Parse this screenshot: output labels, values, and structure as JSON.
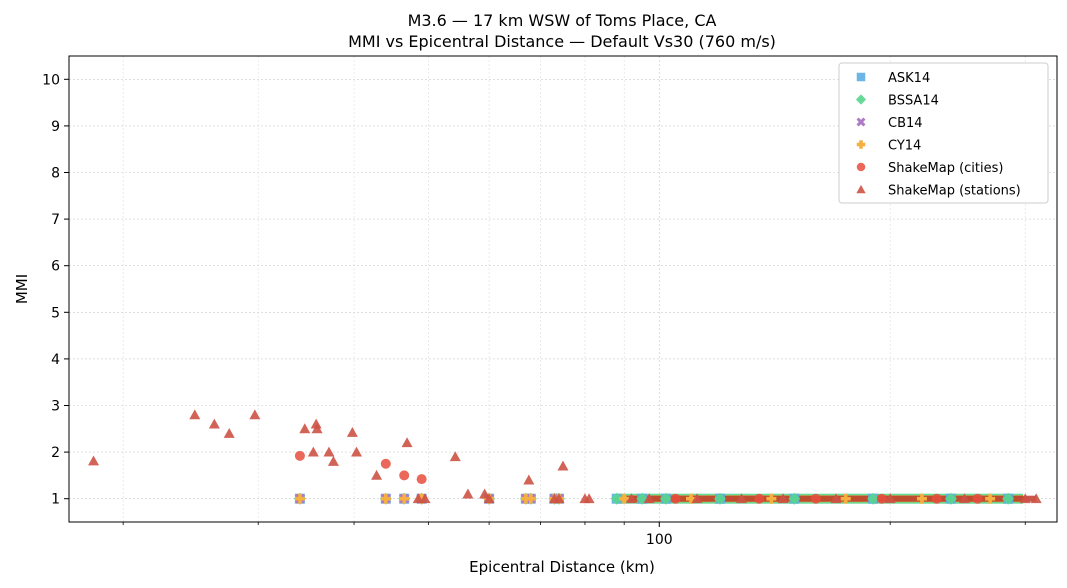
{
  "chart_data": {
    "type": "scatter",
    "title": "M3.6 — 17 km WSW of Toms Place, CA",
    "subtitle": "MMI vs Epicentral Distance — Default Vs30 (760 m/s)",
    "xlabel": "Epicentral Distance (km)",
    "ylabel": "MMI",
    "xscale": "log",
    "xlim": [
      17,
      330
    ],
    "ylim": [
      0.5,
      10.5
    ],
    "x_major_ticks": [
      100
    ],
    "x_minor_ticks": [
      20,
      30,
      40,
      50,
      60,
      70,
      80,
      90,
      200,
      300
    ],
    "y_ticks": [
      1,
      2,
      3,
      4,
      5,
      6,
      7,
      8,
      9,
      10
    ],
    "grid": true,
    "legend_position": "top-right",
    "gmpe_band": {
      "x_start": 88,
      "x_end": 298,
      "mmi": 1.0
    },
    "series": [
      {
        "name": "ASK14",
        "marker": "square",
        "color": "#5dade2",
        "points": [
          [
            34,
            1
          ],
          [
            44,
            1
          ],
          [
            46.5,
            1
          ],
          [
            49,
            1
          ],
          [
            60,
            1
          ],
          [
            67,
            1
          ],
          [
            68,
            1
          ],
          [
            73,
            1
          ],
          [
            74,
            1
          ],
          [
            88,
            1
          ],
          [
            95,
            1
          ],
          [
            102,
            1
          ],
          [
            120,
            1
          ],
          [
            150,
            1
          ],
          [
            190,
            1
          ],
          [
            240,
            1
          ],
          [
            285,
            1
          ]
        ]
      },
      {
        "name": "BSSA14",
        "marker": "diamond",
        "color": "#58d68d",
        "points": [
          [
            34,
            1
          ],
          [
            44,
            1
          ],
          [
            46.5,
            1
          ],
          [
            49,
            1
          ],
          [
            60,
            1
          ],
          [
            67,
            1
          ],
          [
            68,
            1
          ],
          [
            73,
            1
          ],
          [
            74,
            1
          ],
          [
            88,
            1
          ],
          [
            95,
            1
          ],
          [
            102,
            1
          ],
          [
            120,
            1
          ],
          [
            150,
            1
          ],
          [
            190,
            1
          ],
          [
            240,
            1
          ],
          [
            285,
            1
          ]
        ]
      },
      {
        "name": "CB14",
        "marker": "x",
        "color": "#af7ac5",
        "points": [
          [
            34,
            1
          ],
          [
            44,
            1
          ],
          [
            46.5,
            1
          ],
          [
            49,
            1
          ],
          [
            60,
            1
          ],
          [
            67,
            1
          ],
          [
            68,
            1
          ],
          [
            73,
            1
          ],
          [
            74,
            1
          ]
        ]
      },
      {
        "name": "CY14",
        "marker": "plus",
        "color": "#f5b041",
        "points": [
          [
            34,
            1
          ],
          [
            44,
            1
          ],
          [
            46.5,
            1
          ],
          [
            49,
            1
          ],
          [
            60,
            1
          ],
          [
            67,
            1
          ],
          [
            68,
            1
          ],
          [
            73,
            1
          ],
          [
            74,
            1
          ],
          [
            90,
            1
          ],
          [
            110,
            1
          ],
          [
            140,
            1
          ],
          [
            175,
            1
          ],
          [
            220,
            1
          ],
          [
            270,
            1
          ]
        ]
      },
      {
        "name": "ShakeMap (cities)",
        "marker": "circle",
        "color": "#e74c3c",
        "points": [
          [
            34,
            1.92
          ],
          [
            44,
            1.75
          ],
          [
            46.5,
            1.5
          ],
          [
            49,
            1.42
          ],
          [
            105,
            1.0
          ],
          [
            135,
            1.0
          ],
          [
            160,
            1.0
          ],
          [
            195,
            1.0
          ],
          [
            230,
            1.0
          ],
          [
            260,
            1.0
          ]
        ]
      },
      {
        "name": "ShakeMap (stations)",
        "marker": "triangle",
        "color": "#cd5245",
        "points": [
          [
            18.3,
            1.81
          ],
          [
            24.8,
            2.8
          ],
          [
            26.3,
            2.6
          ],
          [
            27.5,
            2.4
          ],
          [
            29.7,
            2.8
          ],
          [
            34.5,
            2.5
          ],
          [
            35.4,
            2.0
          ],
          [
            35.7,
            2.6
          ],
          [
            35.8,
            2.5
          ],
          [
            37.1,
            2.0
          ],
          [
            37.6,
            1.8
          ],
          [
            39.8,
            2.42
          ],
          [
            40.3,
            2.0
          ],
          [
            42.8,
            1.5
          ],
          [
            46.9,
            2.2
          ],
          [
            48.5,
            1.0
          ],
          [
            49.5,
            1.0
          ],
          [
            54.2,
            1.9
          ],
          [
            56.3,
            1.1
          ],
          [
            59.2,
            1.1
          ],
          [
            67.6,
            1.4
          ],
          [
            74.9,
            1.7
          ],
          [
            60,
            1.0
          ],
          [
            73,
            1.0
          ],
          [
            74,
            1.0
          ],
          [
            80,
            1.0
          ],
          [
            81,
            1.0
          ],
          [
            92,
            1.0
          ],
          [
            97,
            1.0
          ],
          [
            112,
            1.0
          ],
          [
            128,
            1.0
          ],
          [
            145,
            1.0
          ],
          [
            170,
            1.0
          ],
          [
            200,
            1.0
          ],
          [
            250,
            1.0
          ],
          [
            300,
            1.0
          ],
          [
            310,
            1.0
          ]
        ]
      }
    ]
  }
}
